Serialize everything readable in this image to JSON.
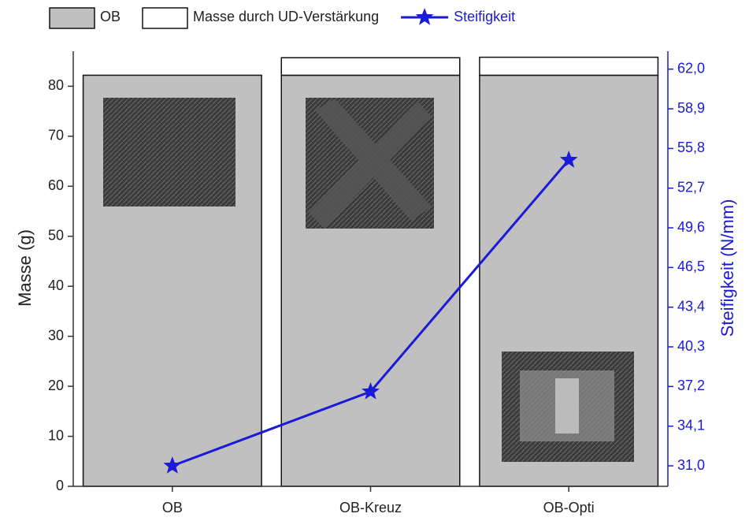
{
  "chart_data": {
    "type": "bar",
    "stacked": true,
    "categories": [
      "OB",
      "OB-Kreuz",
      "OB-Opti"
    ],
    "series": [
      {
        "name": "OB",
        "color": "#c0c0c0",
        "values": [
          82.2,
          82.2,
          82.2
        ]
      },
      {
        "name": "Masse durch UD-Verstärkung",
        "color": "#ffffff",
        "values": [
          0,
          3.5,
          3.6
        ]
      },
      {
        "name": "Steifigkeit",
        "type": "line",
        "axis": "y2",
        "color": "#1a1ad8",
        "values": [
          31.0,
          36.8,
          54.9
        ]
      }
    ],
    "y_label": "Masse (g)",
    "y2_label": "Steifigkeit (N/mm)",
    "ylim": [
      0,
      87
    ],
    "yticks": [
      0,
      10,
      20,
      30,
      40,
      50,
      60,
      70,
      80
    ],
    "y2lim": [
      29.4,
      63.4
    ],
    "y2ticks": [
      {
        "value": 31.0,
        "label": "31,0"
      },
      {
        "value": 34.1,
        "label": "34,1"
      },
      {
        "value": 37.2,
        "label": "37,2"
      },
      {
        "value": 40.3,
        "label": "40,3"
      },
      {
        "value": 43.4,
        "label": "43,4"
      },
      {
        "value": 46.5,
        "label": "46,5"
      },
      {
        "value": 49.6,
        "label": "49,6"
      },
      {
        "value": 52.7,
        "label": "52,7"
      },
      {
        "value": 55.8,
        "label": "55,8"
      },
      {
        "value": 58.9,
        "label": "58,9"
      },
      {
        "value": 62.0,
        "label": "62,0"
      }
    ],
    "legend": "top"
  }
}
